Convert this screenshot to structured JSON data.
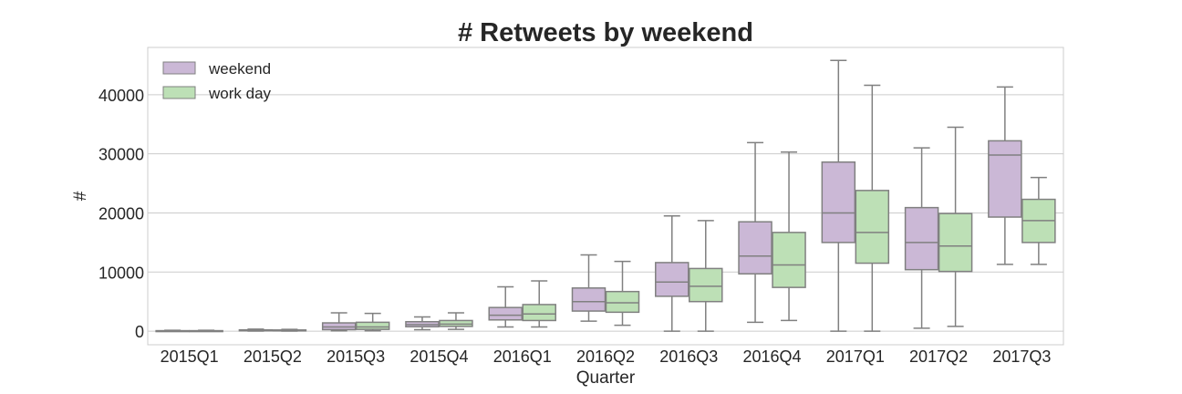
{
  "chart_data": {
    "type": "boxplot",
    "title": "# Retweets by weekend",
    "xlabel": "Quarter",
    "ylabel": "#",
    "ylim": [
      -2300,
      48000
    ],
    "yticks": [
      0,
      10000,
      20000,
      30000,
      40000
    ],
    "grid": true,
    "legend_position": "top-left",
    "categories": [
      "2015Q1",
      "2015Q2",
      "2015Q3",
      "2015Q4",
      "2016Q1",
      "2016Q2",
      "2016Q3",
      "2016Q4",
      "2017Q1",
      "2017Q2",
      "2017Q3"
    ],
    "series": [
      {
        "name": "weekend",
        "color": "#cbb8d6",
        "boxes": [
          {
            "whislo": 0,
            "q1": 10,
            "med": 30,
            "q3": 80,
            "whishi": 150
          },
          {
            "whislo": 10,
            "q1": 60,
            "med": 120,
            "q3": 220,
            "whishi": 350
          },
          {
            "whislo": 50,
            "q1": 250,
            "med": 700,
            "q3": 1400,
            "whishi": 3100
          },
          {
            "whislo": 250,
            "q1": 750,
            "med": 1100,
            "q3": 1600,
            "whishi": 2400
          },
          {
            "whislo": 700,
            "q1": 1900,
            "med": 2700,
            "q3": 4000,
            "whishi": 7500
          },
          {
            "whislo": 1700,
            "q1": 3400,
            "med": 5000,
            "q3": 7300,
            "whishi": 12900
          },
          {
            "whislo": 0,
            "q1": 5900,
            "med": 8300,
            "q3": 11600,
            "whishi": 19500
          },
          {
            "whislo": 1500,
            "q1": 9700,
            "med": 12700,
            "q3": 18500,
            "whishi": 31900
          },
          {
            "whislo": 0,
            "q1": 15000,
            "med": 20000,
            "q3": 28600,
            "whishi": 45800
          },
          {
            "whislo": 500,
            "q1": 10400,
            "med": 15000,
            "q3": 20900,
            "whishi": 31000
          },
          {
            "whislo": 11300,
            "q1": 19300,
            "med": 29800,
            "q3": 32200,
            "whishi": 41300
          }
        ]
      },
      {
        "name": "work day",
        "color": "#bde0b6",
        "boxes": [
          {
            "whislo": 0,
            "q1": 10,
            "med": 30,
            "q3": 80,
            "whishi": 150
          },
          {
            "whislo": 10,
            "q1": 60,
            "med": 110,
            "q3": 200,
            "whishi": 300
          },
          {
            "whislo": 50,
            "q1": 300,
            "med": 700,
            "q3": 1500,
            "whishi": 3000
          },
          {
            "whislo": 300,
            "q1": 800,
            "med": 1200,
            "q3": 1800,
            "whishi": 3100
          },
          {
            "whislo": 700,
            "q1": 1800,
            "med": 2900,
            "q3": 4500,
            "whishi": 8500
          },
          {
            "whislo": 1000,
            "q1": 3200,
            "med": 4800,
            "q3": 6700,
            "whishi": 11800
          },
          {
            "whislo": 0,
            "q1": 5000,
            "med": 7600,
            "q3": 10600,
            "whishi": 18700
          },
          {
            "whislo": 1800,
            "q1": 7400,
            "med": 11200,
            "q3": 16700,
            "whishi": 30300
          },
          {
            "whislo": 0,
            "q1": 11500,
            "med": 16700,
            "q3": 23800,
            "whishi": 41600
          },
          {
            "whislo": 800,
            "q1": 10100,
            "med": 14400,
            "q3": 19900,
            "whishi": 34500
          },
          {
            "whislo": 11300,
            "q1": 15000,
            "med": 18700,
            "q3": 22300,
            "whishi": 26000
          }
        ]
      }
    ]
  }
}
